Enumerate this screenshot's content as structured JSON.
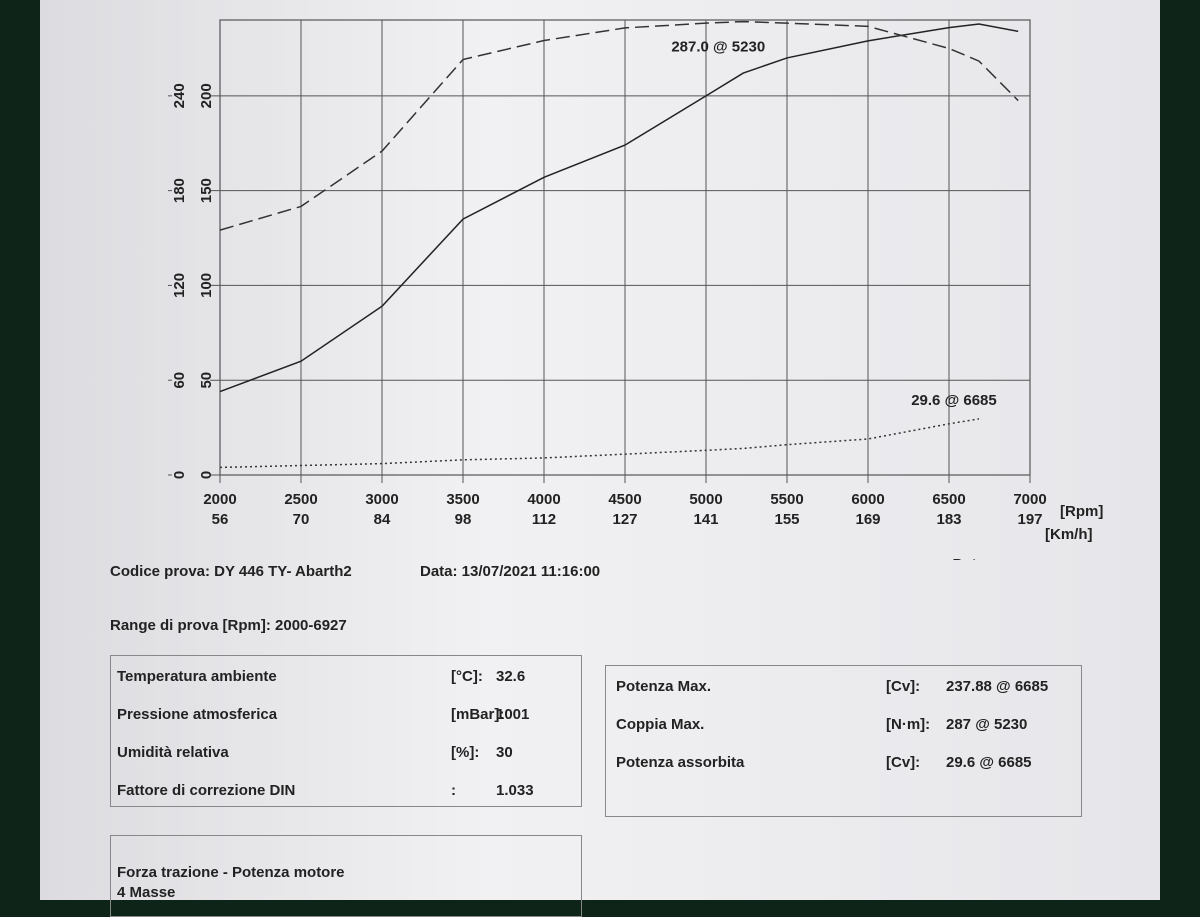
{
  "chart_data": {
    "type": "line",
    "x": [
      2000,
      2500,
      3000,
      3500,
      4000,
      4500,
      5000,
      5230,
      5500,
      6000,
      6500,
      6685,
      6927
    ],
    "xlim": [
      2000,
      7000
    ],
    "xticks": [
      2000,
      2500,
      3000,
      3500,
      4000,
      4500,
      5000,
      5500,
      6000,
      6500,
      7000
    ],
    "x_unit": "[Rpm]",
    "secondary_x_labels": [
      56,
      70,
      84,
      98,
      112,
      127,
      141,
      155,
      169,
      183,
      197
    ],
    "secondary_x_unit": "[Km/h]",
    "ylim": [
      0,
      240
    ],
    "yticks": [
      0,
      50,
      100,
      150,
      200
    ],
    "y2lim": [
      0,
      288
    ],
    "y2ticks": [
      0,
      60,
      120,
      180,
      240
    ],
    "grid": true,
    "series": [
      {
        "name": "Potenza",
        "color": "#222222",
        "style": "solid",
        "values": [
          44,
          60,
          89,
          135,
          157,
          174,
          200,
          212,
          220,
          229,
          236,
          237.88,
          234
        ]
      },
      {
        "name": "Coppia",
        "color": "#333333",
        "style": "dashed",
        "axis": "y2",
        "values": [
          155,
          170,
          205,
          263,
          275,
          283,
          286,
          287,
          286,
          284,
          270,
          262,
          237
        ]
      },
      {
        "name": "Assorbita [Cv]",
        "color": "#333333",
        "style": "dotted",
        "values": [
          4,
          5,
          6,
          8,
          9,
          11,
          13,
          14,
          16,
          19,
          27,
          29.6,
          null
        ]
      }
    ],
    "annotations": [
      {
        "text": "287.0 @ 5230",
        "x": 5230,
        "y": 287,
        "axis": "y2"
      },
      {
        "text": "29.6 @ 6685",
        "x": 6685,
        "y": 29.6
      }
    ]
  },
  "test_info": {
    "code": "Codice prova: DY 446 TY- Abarth2",
    "date": "Data: 13/07/2021 11:16:00",
    "range": "Range di prova [Rpm]: 2000-6927"
  },
  "conditions": [
    [
      "Temperatura ambiente",
      "[°C]:",
      "32.6"
    ],
    [
      "Pressione atmosferica",
      "[mBar]:",
      "1001"
    ],
    [
      "Umidità relativa",
      "[%]:",
      "30"
    ],
    [
      "Fattore di correzione DIN",
      ":",
      "1.033"
    ]
  ],
  "results": [
    [
      "Potenza Max.",
      "[Cv]:",
      "237.88 @ 6685"
    ],
    [
      "Coppia Max.",
      "[N·m]:",
      "287 @ 5230"
    ],
    [
      "Potenza assorbita",
      "[Cv]:",
      "29.6 @ 6685"
    ]
  ],
  "footer": {
    "title": "Forza trazione - Potenza motore",
    "subtitle": "4 Masse"
  }
}
